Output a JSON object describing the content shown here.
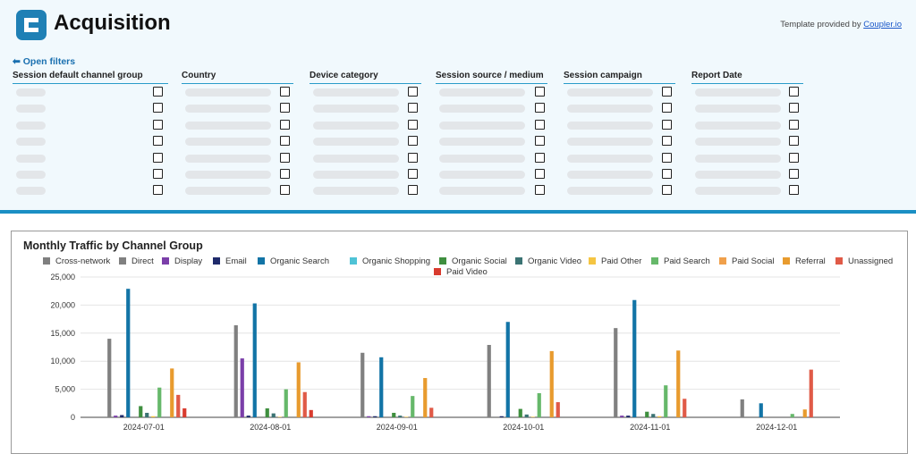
{
  "header": {
    "title": "Acquisition",
    "credit_prefix": "Template provided by ",
    "credit_link": "Coupler.io",
    "logo_icon": "coupler-logo-icon",
    "accent": "#1a8fc4"
  },
  "filters": {
    "open_label": "Open filters",
    "arrow_icon": "arrow-left-icon",
    "columns": [
      {
        "label": "Session default channel group"
      },
      {
        "label": "Country"
      },
      {
        "label": "Device category"
      },
      {
        "label": "Session source / medium"
      },
      {
        "label": "Session campaign"
      },
      {
        "label": "Report Date"
      }
    ],
    "rows_per_column": 7
  },
  "chart_data": {
    "type": "bar",
    "title": "Monthly Traffic by Channel Group",
    "categories": [
      "2024-07-01",
      "2024-08-01",
      "2024-09-01",
      "2024-10-01",
      "2024-11-01",
      "2024-12-01"
    ],
    "ylim": [
      0,
      25000
    ],
    "yticks": [
      "0",
      "5,000",
      "10,000",
      "15,000",
      "20,000",
      "25,000"
    ],
    "ytick_values": [
      0,
      5000,
      10000,
      15000,
      20000,
      25000
    ],
    "grid": true,
    "legend_position": "top",
    "series": [
      {
        "name": "Cross-network",
        "color": "#7f7f7f",
        "values": [
          0,
          0,
          0,
          0,
          0,
          0
        ]
      },
      {
        "name": "Direct",
        "color": "#808080",
        "values": [
          14000,
          16400,
          11500,
          12900,
          15900,
          3200
        ]
      },
      {
        "name": "Display",
        "color": "#7b3fa9",
        "values": [
          300,
          10500,
          200,
          0,
          300,
          0
        ]
      },
      {
        "name": "Email",
        "color": "#1f2a6b",
        "values": [
          400,
          300,
          200,
          200,
          300,
          0
        ]
      },
      {
        "name": "Organic Search",
        "color": "#1274a6",
        "values": [
          22900,
          20300,
          10700,
          17000,
          20900,
          2500
        ]
      },
      {
        "name": "Organic Shopping",
        "color": "#4fc3d6",
        "values": [
          0,
          0,
          0,
          0,
          0,
          0
        ]
      },
      {
        "name": "Organic Social",
        "color": "#3f8f3f",
        "values": [
          2000,
          1600,
          800,
          1500,
          1000,
          0
        ]
      },
      {
        "name": "Organic Video",
        "color": "#3b7373",
        "values": [
          800,
          700,
          300,
          500,
          600,
          0
        ]
      },
      {
        "name": "Paid Other",
        "color": "#f5c542",
        "values": [
          200,
          100,
          100,
          100,
          200,
          0
        ]
      },
      {
        "name": "Paid Search",
        "color": "#66b86a",
        "values": [
          5300,
          5000,
          3800,
          4300,
          5700,
          600
        ]
      },
      {
        "name": "Paid Social",
        "color": "#f0a04b",
        "values": [
          0,
          0,
          0,
          0,
          0,
          0
        ]
      },
      {
        "name": "Referral",
        "color": "#e89b2e",
        "values": [
          8700,
          9800,
          7000,
          11800,
          11900,
          1400
        ]
      },
      {
        "name": "Unassigned",
        "color": "#e05a47",
        "values": [
          4000,
          4500,
          1700,
          2700,
          3300,
          8500
        ]
      },
      {
        "name": "Paid Video",
        "color": "#d83b2e",
        "values": [
          1600,
          1300,
          0,
          0,
          0,
          0
        ]
      }
    ]
  }
}
